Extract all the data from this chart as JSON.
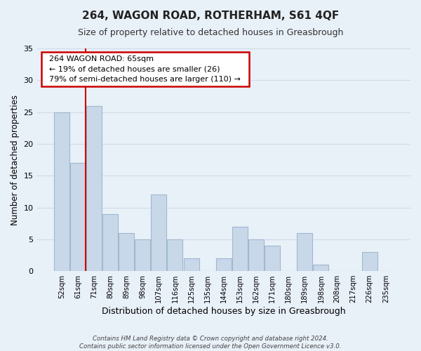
{
  "title": "264, WAGON ROAD, ROTHERHAM, S61 4QF",
  "subtitle": "Size of property relative to detached houses in Greasbrough",
  "xlabel": "Distribution of detached houses by size in Greasbrough",
  "ylabel": "Number of detached properties",
  "footer_line1": "Contains HM Land Registry data © Crown copyright and database right 2024.",
  "footer_line2": "Contains public sector information licensed under the Open Government Licence v3.0.",
  "bin_labels": [
    "52sqm",
    "61sqm",
    "71sqm",
    "80sqm",
    "89sqm",
    "98sqm",
    "107sqm",
    "116sqm",
    "125sqm",
    "135sqm",
    "144sqm",
    "153sqm",
    "162sqm",
    "171sqm",
    "180sqm",
    "189sqm",
    "198sqm",
    "208sqm",
    "217sqm",
    "226sqm",
    "235sqm"
  ],
  "bar_heights": [
    25,
    17,
    26,
    9,
    6,
    5,
    12,
    5,
    2,
    0,
    2,
    7,
    5,
    4,
    0,
    6,
    1,
    0,
    0,
    3,
    0
  ],
  "bar_color": "#c8d8e8",
  "bar_edge_color": "#a0b8d0",
  "highlight_line_color": "#cc0000",
  "ylim": [
    0,
    35
  ],
  "yticks": [
    0,
    5,
    10,
    15,
    20,
    25,
    30,
    35
  ],
  "annotation_title": "264 WAGON ROAD: 65sqm",
  "annotation_line1": "← 19% of detached houses are smaller (26)",
  "annotation_line2": "79% of semi-detached houses are larger (110) →",
  "annotation_box_color": "#ffffff",
  "annotation_box_edge": "#cc0000",
  "grid_color": "#d0dce8",
  "background_color": "#e8f0f8"
}
